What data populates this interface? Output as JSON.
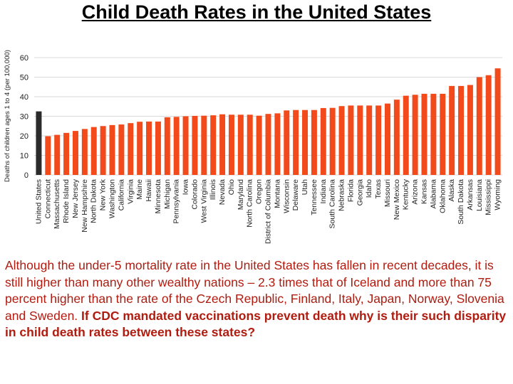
{
  "slide": {
    "title": "Child Death Rates in the United States",
    "caption_text": "Although the under-5 mortality rate in the United States has fallen in recent decades, it is still higher than many other wealthy nations – 2.3 times that of Iceland and more than 75 percent higher than the rate of the Czech Republic, Finland, Italy, Japan, Norway, Slovenia and Sweden.",
    "caption_bold": "If CDC mandated vaccinations prevent death why is their such disparity in child death rates between these states?"
  },
  "colors": {
    "bar": "#f24a1b",
    "highlight_bar": "#2b2b2b",
    "caption": "#b01c10",
    "gridline": "#d9d9d9"
  },
  "chart_data": {
    "type": "bar",
    "title": "",
    "xlabel": "",
    "ylabel": "Deaths of children ages 1 to 4 (per 100,000)",
    "ylim": [
      0,
      60
    ],
    "yticks": [
      0,
      10,
      20,
      30,
      40,
      50,
      60
    ],
    "grid": true,
    "highlight_category": "United States",
    "categories": [
      "United States",
      "Connecticut",
      "Massachusetts",
      "Rhode Island",
      "New Jersey",
      "New Hampshire",
      "North Dakota",
      "New York",
      "Washington",
      "California",
      "Virginia",
      "Maine",
      "Hawaii",
      "Minnesota",
      "Michigan",
      "Pennsylvania",
      "Iowa",
      "Colorado",
      "West Virginia",
      "Illinois",
      "Nevada",
      "Ohio",
      "Maryland",
      "North Carolina",
      "Oregon",
      "District of Columbia",
      "Montana",
      "Wisconsin",
      "Delaware",
      "Utah",
      "Tennessee",
      "Indiana",
      "South Carolina",
      "Nebraska",
      "Florida",
      "Georgia",
      "Idaho",
      "Texas",
      "Missouri",
      "New Mexico",
      "Kentucky",
      "Arizona",
      "Kansas",
      "Alabama",
      "Oklahoma",
      "Alaska",
      "South Dakota",
      "Arkansas",
      "Louisiana",
      "Mississippi",
      "Wyoming"
    ],
    "values": [
      32.5,
      19.8,
      20.5,
      21.5,
      22.5,
      23.5,
      24.5,
      25,
      25.5,
      25.8,
      26.5,
      27.2,
      27.3,
      27.3,
      29.5,
      29.7,
      30,
      30.2,
      30.3,
      30.5,
      31,
      30.8,
      30.8,
      30.8,
      30.3,
      31.2,
      31.5,
      33,
      33.2,
      33.2,
      33.2,
      34.2,
      34.3,
      35.2,
      35.5,
      35.5,
      35.5,
      35.5,
      36.5,
      38.5,
      40.5,
      41,
      41.5,
      41.5,
      41.5,
      45.5,
      45.5,
      46,
      50,
      51,
      54.5
    ]
  }
}
